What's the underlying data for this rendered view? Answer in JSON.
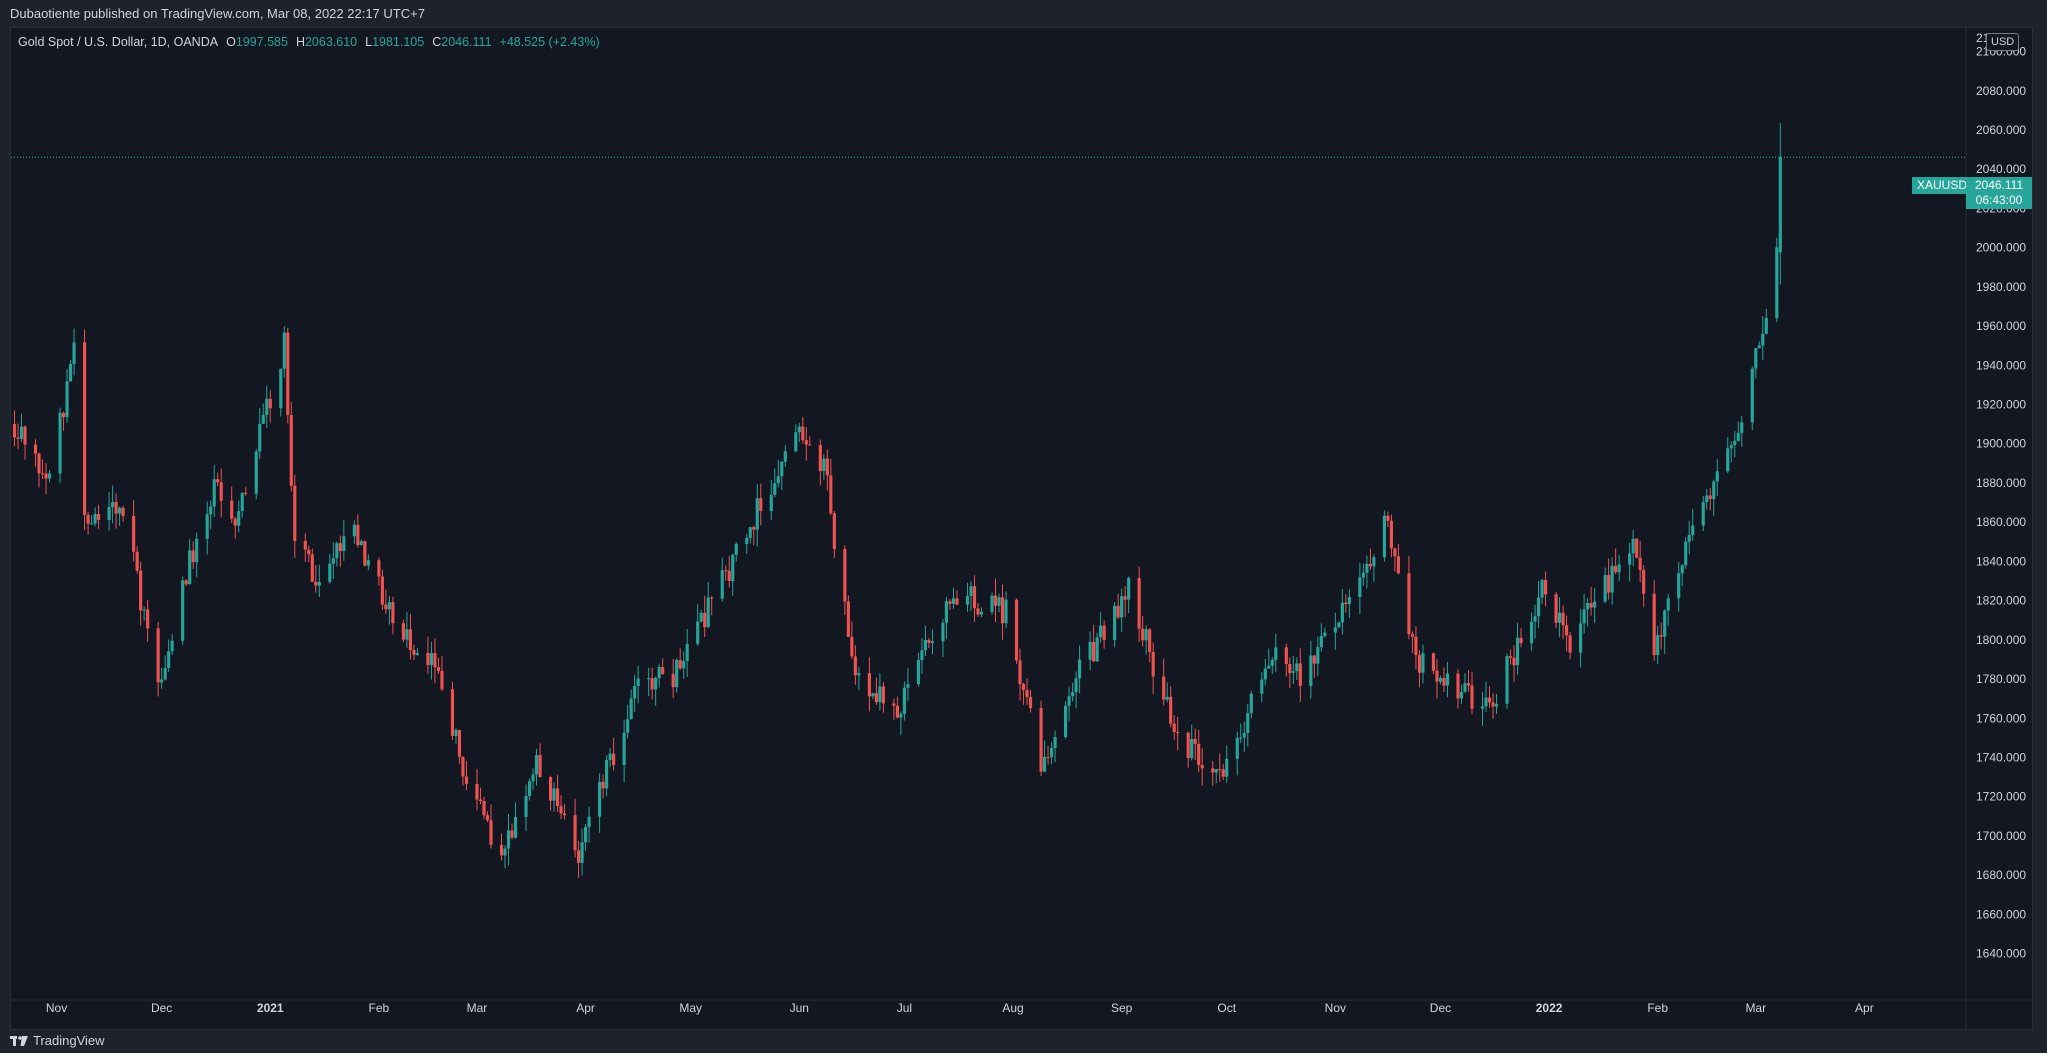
{
  "header": {
    "published": "Dubaotiente published on TradingView.com, Mar 08, 2022 22:17 UTC+7"
  },
  "legend": {
    "symbol": "Gold Spot / U.S. Dollar, 1D, OANDA",
    "o_label": "O",
    "o_value": "1997.585",
    "h_label": "H",
    "h_value": "2063.610",
    "l_label": "L",
    "l_value": "1981.105",
    "c_label": "C",
    "c_value": "2046.111",
    "change": "+48.525 (+2.43%)"
  },
  "price_axis": {
    "currency_label": "USD",
    "top_tick_partial": "21",
    "last_price_symbol": "XAUUSD",
    "last_price": "2046.111",
    "countdown": "06:43:00"
  },
  "footer": {
    "brand": "TradingView"
  },
  "colors": {
    "up": "#26a69a",
    "down": "#ef5350",
    "background": "#131722",
    "frame": "#1e222d",
    "text": "#d1d4dc",
    "grid": "#2a2e39"
  },
  "chart_data": {
    "type": "candlestick",
    "title": "Gold Spot / U.S. Dollar, 1D, OANDA",
    "y_range": [
      1624,
      2112
    ],
    "x_range": [
      "2020-10-19",
      "2022-04-30"
    ],
    "grid": false,
    "y_ticks": [
      "2100.000",
      "2080.000",
      "2060.000",
      "2040.000",
      "2020.000",
      "2000.000",
      "1980.000",
      "1960.000",
      "1940.000",
      "1920.000",
      "1900.000",
      "1880.000",
      "1860.000",
      "1840.000",
      "1820.000",
      "1800.000",
      "1780.000",
      "1760.000",
      "1740.000",
      "1720.000",
      "1700.000",
      "1680.000",
      "1660.000",
      "1640.000"
    ],
    "x_ticks": [
      {
        "label": "Nov",
        "date": "2020-11-01"
      },
      {
        "label": "Dec",
        "date": "2020-12-01"
      },
      {
        "label": "2021",
        "date": "2021-01-01"
      },
      {
        "label": "Feb",
        "date": "2021-02-01"
      },
      {
        "label": "Mar",
        "date": "2021-03-01"
      },
      {
        "label": "Apr",
        "date": "2021-04-01"
      },
      {
        "label": "May",
        "date": "2021-05-01"
      },
      {
        "label": "Jun",
        "date": "2021-06-01"
      },
      {
        "label": "Jul",
        "date": "2021-07-01"
      },
      {
        "label": "Aug",
        "date": "2021-08-01"
      },
      {
        "label": "Sep",
        "date": "2021-09-01"
      },
      {
        "label": "Oct",
        "date": "2021-10-01"
      },
      {
        "label": "Nov",
        "date": "2021-11-01"
      },
      {
        "label": "Dec",
        "date": "2021-12-01"
      },
      {
        "label": "2022",
        "date": "2022-01-01"
      },
      {
        "label": "Feb",
        "date": "2022-02-01"
      },
      {
        "label": "Mar",
        "date": "2022-03-01"
      },
      {
        "label": "Apr",
        "date": "2022-04-01"
      }
    ],
    "last_price": 2046.111,
    "anchors": [
      [
        "2020-10-20",
        1910
      ],
      [
        "2020-10-30",
        1880
      ],
      [
        "2020-11-06",
        1950
      ],
      [
        "2020-11-09",
        1860
      ],
      [
        "2020-11-20",
        1870
      ],
      [
        "2020-11-27",
        1800
      ],
      [
        "2020-11-30",
        1777
      ],
      [
        "2020-12-09",
        1840
      ],
      [
        "2020-12-17",
        1882
      ],
      [
        "2020-12-22",
        1860
      ],
      [
        "2021-01-05",
        1950
      ],
      [
        "2021-01-08",
        1850
      ],
      [
        "2021-01-15",
        1830
      ],
      [
        "2021-01-25",
        1855
      ],
      [
        "2021-02-05",
        1810
      ],
      [
        "2021-02-16",
        1790
      ],
      [
        "2021-02-26",
        1730
      ],
      [
        "2021-03-08",
        1685
      ],
      [
        "2021-03-18",
        1740
      ],
      [
        "2021-03-30",
        1690
      ],
      [
        "2021-04-16",
        1780
      ],
      [
        "2021-04-26",
        1780
      ],
      [
        "2021-05-06",
        1815
      ],
      [
        "2021-05-24",
        1880
      ],
      [
        "2021-06-01",
        1905
      ],
      [
        "2021-06-08",
        1890
      ],
      [
        "2021-06-17",
        1780
      ],
      [
        "2021-06-29",
        1765
      ],
      [
        "2021-07-15",
        1825
      ],
      [
        "2021-07-30",
        1814
      ],
      [
        "2021-08-09",
        1735
      ],
      [
        "2021-08-20",
        1783
      ],
      [
        "2021-09-03",
        1827
      ],
      [
        "2021-09-16",
        1755
      ],
      [
        "2021-09-29",
        1728
      ],
      [
        "2021-10-14",
        1795
      ],
      [
        "2021-10-22",
        1783
      ],
      [
        "2021-11-05",
        1818
      ],
      [
        "2021-11-16",
        1862
      ],
      [
        "2021-11-24",
        1790
      ],
      [
        "2021-12-15",
        1765
      ],
      [
        "2021-12-31",
        1829
      ],
      [
        "2022-01-07",
        1797
      ],
      [
        "2022-01-25",
        1852
      ],
      [
        "2022-01-31",
        1797
      ],
      [
        "2022-02-11",
        1859
      ],
      [
        "2022-02-24",
        1904
      ],
      [
        "2022-03-01",
        1943
      ],
      [
        "2022-03-04",
        1966
      ],
      [
        "2022-03-07",
        1998
      ],
      [
        "2022-03-08",
        2046
      ]
    ]
  }
}
